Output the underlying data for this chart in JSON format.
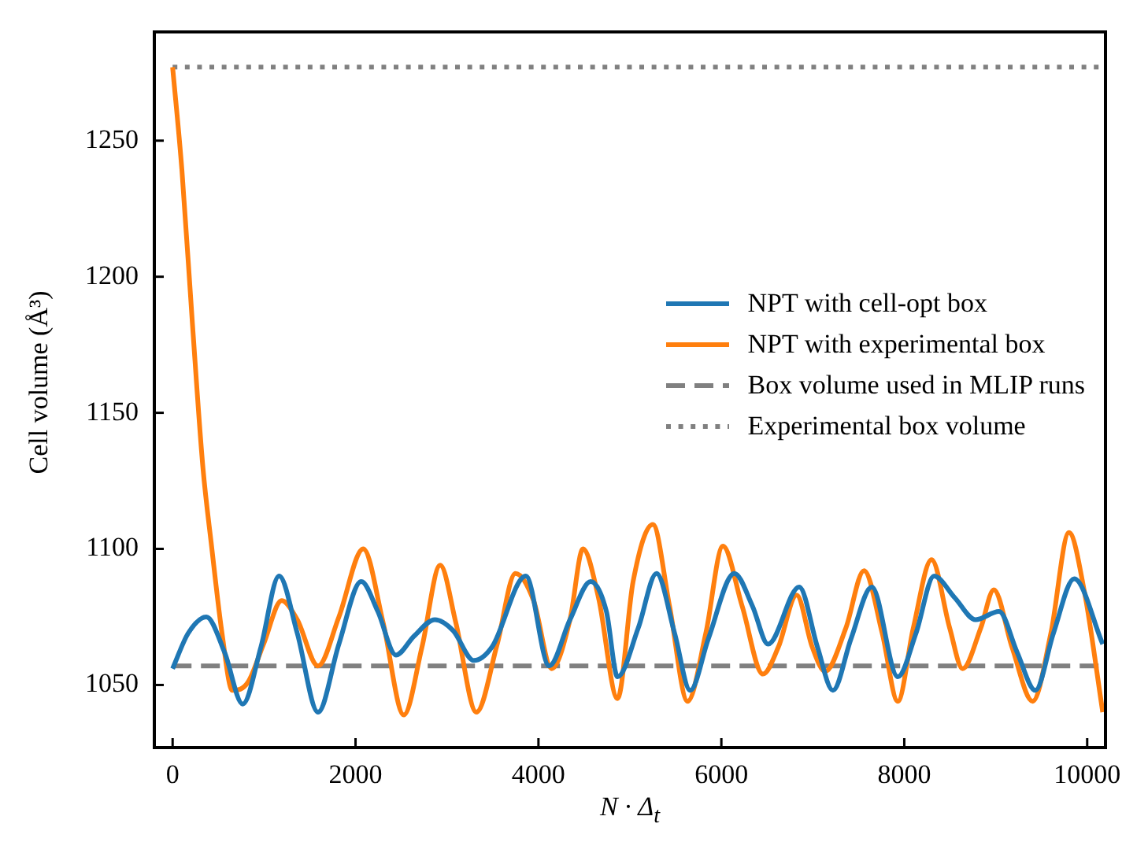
{
  "chart_data": {
    "type": "line",
    "xlabel": "N · Δ$_{t}$",
    "ylabel": "Cell volume (Å³)",
    "xlim": [
      -200,
      10200
    ],
    "ylim": [
      1027,
      1290
    ],
    "xticks": [
      0,
      2000,
      4000,
      6000,
      8000,
      10000
    ],
    "yticks": [
      1050,
      1100,
      1150,
      1200,
      1250
    ],
    "grid": false,
    "legend": "right",
    "line_style": "solid",
    "marker": "none",
    "series": [
      {
        "name": "NPT with cell-opt box",
        "color": "#1f77b4",
        "x": [
          0,
          170,
          369,
          568,
          767,
          966,
          1164,
          1363,
          1590,
          1818,
          2062,
          2244,
          2442,
          2641,
          2868,
          3067,
          3294,
          3493,
          3862,
          4118,
          4345,
          4572,
          4743,
          4865,
          5092,
          5291,
          5489,
          5660,
          5858,
          6142,
          6340,
          6511,
          6851,
          7050,
          7220,
          7418,
          7645,
          7929,
          8128,
          8326,
          8553,
          8780,
          9036,
          9234,
          9433,
          9631,
          9858,
          10170
        ],
        "values": [
          1056,
          1069,
          1075,
          1062,
          1043,
          1064,
          1090,
          1069,
          1040,
          1065,
          1088,
          1077,
          1061,
          1068,
          1074,
          1070,
          1059,
          1064,
          1090,
          1057,
          1074,
          1088,
          1077,
          1053,
          1071,
          1091,
          1069,
          1048,
          1067,
          1091,
          1079,
          1065,
          1086,
          1064,
          1048,
          1067,
          1086,
          1053,
          1069,
          1090,
          1082,
          1074,
          1077,
          1062,
          1048,
          1069,
          1089,
          1065
        ]
      },
      {
        "name": "NPT with experimental box",
        "color": "#ff7f0e",
        "x": [
          0,
          102,
          216,
          331,
          426,
          540,
          653,
          824,
          994,
          1193,
          1363,
          1590,
          1818,
          2085,
          2301,
          2528,
          2727,
          2926,
          3096,
          3322,
          3549,
          3748,
          3947,
          4145,
          4345,
          4487,
          4657,
          4865,
          5035,
          5251,
          5433,
          5631,
          5830,
          6017,
          6227,
          6454,
          6624,
          6823,
          6993,
          7135,
          7362,
          7560,
          7759,
          7929,
          8099,
          8298,
          8496,
          8638,
          8837,
          8979,
          9177,
          9404,
          9603,
          9801,
          9971,
          10170
        ],
        "values": [
          1277,
          1239,
          1183,
          1130,
          1101,
          1069,
          1048,
          1051,
          1065,
          1081,
          1074,
          1057,
          1075,
          1100,
          1073,
          1039,
          1064,
          1094,
          1073,
          1040,
          1065,
          1091,
          1081,
          1056,
          1074,
          1100,
          1082,
          1045,
          1088,
          1109,
          1079,
          1044,
          1069,
          1101,
          1079,
          1054,
          1064,
          1083,
          1064,
          1055,
          1071,
          1092,
          1069,
          1044,
          1071,
          1096,
          1071,
          1056,
          1071,
          1085,
          1064,
          1044,
          1069,
          1106,
          1084,
          1040
        ]
      }
    ],
    "ref_lines": [
      {
        "axis": "y",
        "value": 1057,
        "label": "Box volume used in MLIP runs",
        "color": "#808080",
        "line_style": "dashed"
      },
      {
        "axis": "y",
        "value": 1277,
        "label": "Experimental box volume",
        "color": "#808080",
        "line_style": "dotted"
      }
    ]
  }
}
